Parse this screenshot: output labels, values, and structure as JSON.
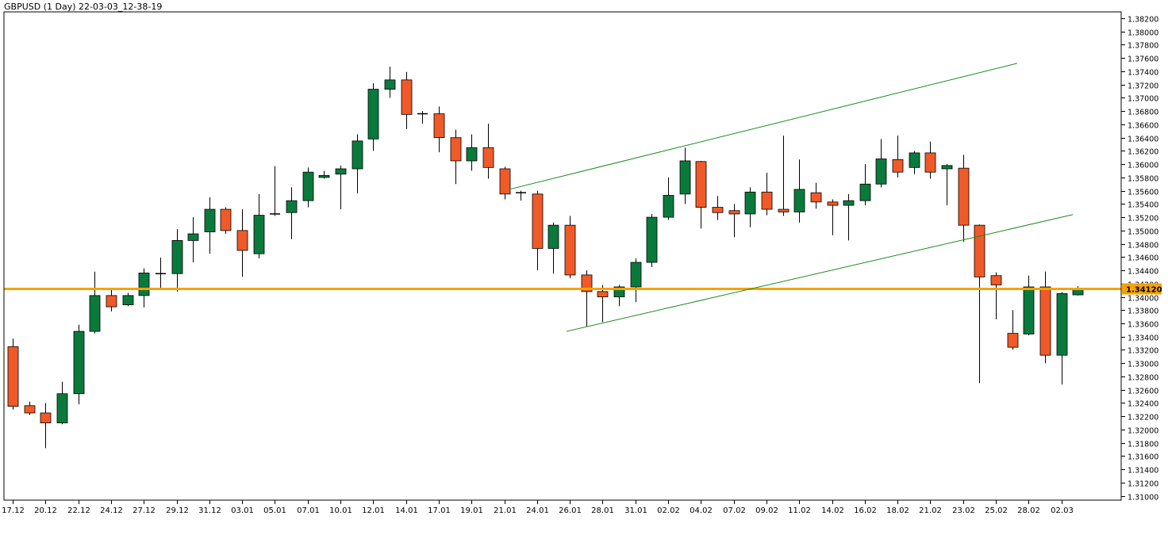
{
  "chart_title": "GBPUSD (1 Day) 22-03-03_12-38-19",
  "colors": {
    "bull": "#0a7a3c",
    "bear": "#f05a28",
    "wick": "#000000",
    "level": "#f5a300",
    "channel": "#1c8a1c",
    "background": "#ffffff",
    "frame": "#000000",
    "price_tag_bg": "#f5a300"
  },
  "chart_data": {
    "type": "candlestick",
    "title": "GBPUSD (1 Day) 22-03-03_12-38-19",
    "ylim": [
      1.31,
      1.382
    ],
    "yticks": [
      "1.38200",
      "1.38000",
      "1.37800",
      "1.37600",
      "1.37400",
      "1.37200",
      "1.37000",
      "1.36800",
      "1.36600",
      "1.36400",
      "1.36200",
      "1.36000",
      "1.35800",
      "1.35600",
      "1.35400",
      "1.35200",
      "1.35000",
      "1.34800",
      "1.34600",
      "1.34400",
      "1.34200",
      "1.34000",
      "1.33800",
      "1.33600",
      "1.33400",
      "1.33200",
      "1.33000",
      "1.32800",
      "1.32600",
      "1.32400",
      "1.32200",
      "1.32000",
      "1.31800",
      "1.31600",
      "1.31400",
      "1.31200",
      "1.31000"
    ],
    "xtick_labels": [
      {
        "label": "17.12",
        "bar": 0
      },
      {
        "label": "20.12",
        "bar": 2
      },
      {
        "label": "22.12",
        "bar": 4
      },
      {
        "label": "24.12",
        "bar": 6
      },
      {
        "label": "27.12",
        "bar": 8
      },
      {
        "label": "29.12",
        "bar": 10
      },
      {
        "label": "31.12",
        "bar": 12
      },
      {
        "label": "03.01",
        "bar": 14
      },
      {
        "label": "05.01",
        "bar": 16
      },
      {
        "label": "07.01",
        "bar": 18
      },
      {
        "label": "10.01",
        "bar": 20
      },
      {
        "label": "12.01",
        "bar": 22
      },
      {
        "label": "14.01",
        "bar": 24
      },
      {
        "label": "17.01",
        "bar": 26
      },
      {
        "label": "19.01",
        "bar": 28
      },
      {
        "label": "21.01",
        "bar": 30
      },
      {
        "label": "24.01",
        "bar": 32
      },
      {
        "label": "26.01",
        "bar": 34
      },
      {
        "label": "28.01",
        "bar": 36
      },
      {
        "label": "31.01",
        "bar": 38
      },
      {
        "label": "02.02",
        "bar": 40
      },
      {
        "label": "04.02",
        "bar": 42
      },
      {
        "label": "07.02",
        "bar": 44
      },
      {
        "label": "09.02",
        "bar": 46
      },
      {
        "label": "11.02",
        "bar": 48
      },
      {
        "label": "14.02",
        "bar": 50
      },
      {
        "label": "16.02",
        "bar": 52
      },
      {
        "label": "18.02",
        "bar": 54
      },
      {
        "label": "21.02",
        "bar": 56
      },
      {
        "label": "23.02",
        "bar": 58
      },
      {
        "label": "25.02",
        "bar": 60
      },
      {
        "label": "28.02",
        "bar": 62
      },
      {
        "label": "02.03",
        "bar": 64
      }
    ],
    "candles": [
      {
        "o": 1.3325,
        "h": 1.3337,
        "l": 1.323,
        "c": 1.3235
      },
      {
        "o": 1.3236,
        "h": 1.3242,
        "l": 1.3222,
        "c": 1.3225
      },
      {
        "o": 1.3225,
        "h": 1.324,
        "l": 1.3172,
        "c": 1.321
      },
      {
        "o": 1.321,
        "h": 1.3272,
        "l": 1.3208,
        "c": 1.3254
      },
      {
        "o": 1.3254,
        "h": 1.3358,
        "l": 1.3238,
        "c": 1.3348
      },
      {
        "o": 1.3348,
        "h": 1.3438,
        "l": 1.3345,
        "c": 1.3402
      },
      {
        "o": 1.3402,
        "h": 1.3412,
        "l": 1.3378,
        "c": 1.3385
      },
      {
        "o": 1.3388,
        "h": 1.3406,
        "l": 1.3386,
        "c": 1.3402
      },
      {
        "o": 1.3402,
        "h": 1.3443,
        "l": 1.3384,
        "c": 1.3436
      },
      {
        "o": 1.3435,
        "h": 1.3459,
        "l": 1.3413,
        "c": 1.3435
      },
      {
        "o": 1.3435,
        "h": 1.3502,
        "l": 1.3408,
        "c": 1.3485
      },
      {
        "o": 1.3485,
        "h": 1.352,
        "l": 1.3452,
        "c": 1.3495
      },
      {
        "o": 1.3498,
        "h": 1.355,
        "l": 1.3465,
        "c": 1.3532
      },
      {
        "o": 1.3532,
        "h": 1.3535,
        "l": 1.3495,
        "c": 1.35
      },
      {
        "o": 1.35,
        "h": 1.3532,
        "l": 1.343,
        "c": 1.347
      },
      {
        "o": 1.3465,
        "h": 1.3555,
        "l": 1.3458,
        "c": 1.3523
      },
      {
        "o": 1.3525,
        "h": 1.3597,
        "l": 1.3522,
        "c": 1.3525
      },
      {
        "o": 1.3527,
        "h": 1.3565,
        "l": 1.3487,
        "c": 1.3545
      },
      {
        "o": 1.3545,
        "h": 1.3595,
        "l": 1.3535,
        "c": 1.3588
      },
      {
        "o": 1.358,
        "h": 1.359,
        "l": 1.3578,
        "c": 1.3583
      },
      {
        "o": 1.3585,
        "h": 1.3598,
        "l": 1.3532,
        "c": 1.3593
      },
      {
        "o": 1.3593,
        "h": 1.3645,
        "l": 1.3556,
        "c": 1.3635
      },
      {
        "o": 1.3638,
        "h": 1.3722,
        "l": 1.362,
        "c": 1.3713
      },
      {
        "o": 1.3713,
        "h": 1.3747,
        "l": 1.37,
        "c": 1.3727
      },
      {
        "o": 1.3727,
        "h": 1.3739,
        "l": 1.3653,
        "c": 1.3675
      },
      {
        "o": 1.3676,
        "h": 1.368,
        "l": 1.3661,
        "c": 1.3676
      },
      {
        "o": 1.3676,
        "h": 1.3687,
        "l": 1.3618,
        "c": 1.364
      },
      {
        "o": 1.364,
        "h": 1.3652,
        "l": 1.357,
        "c": 1.3605
      },
      {
        "o": 1.3605,
        "h": 1.3645,
        "l": 1.359,
        "c": 1.3625
      },
      {
        "o": 1.3625,
        "h": 1.3661,
        "l": 1.3578,
        "c": 1.3595
      },
      {
        "o": 1.3593,
        "h": 1.3596,
        "l": 1.3547,
        "c": 1.3555
      },
      {
        "o": 1.3557,
        "h": 1.356,
        "l": 1.3545,
        "c": 1.3557
      },
      {
        "o": 1.3555,
        "h": 1.356,
        "l": 1.344,
        "c": 1.3473
      },
      {
        "o": 1.3473,
        "h": 1.3512,
        "l": 1.3435,
        "c": 1.3508
      },
      {
        "o": 1.3508,
        "h": 1.3522,
        "l": 1.3428,
        "c": 1.3433
      },
      {
        "o": 1.3433,
        "h": 1.344,
        "l": 1.3355,
        "c": 1.3408
      },
      {
        "o": 1.3408,
        "h": 1.3418,
        "l": 1.3362,
        "c": 1.34
      },
      {
        "o": 1.34,
        "h": 1.3418,
        "l": 1.3386,
        "c": 1.3415
      },
      {
        "o": 1.3415,
        "h": 1.3458,
        "l": 1.3392,
        "c": 1.3452
      },
      {
        "o": 1.3452,
        "h": 1.3525,
        "l": 1.3445,
        "c": 1.352
      },
      {
        "o": 1.352,
        "h": 1.358,
        "l": 1.3516,
        "c": 1.3553
      },
      {
        "o": 1.3555,
        "h": 1.3625,
        "l": 1.354,
        "c": 1.3605
      },
      {
        "o": 1.3604,
        "h": 1.3605,
        "l": 1.3503,
        "c": 1.3535
      },
      {
        "o": 1.3535,
        "h": 1.3552,
        "l": 1.3516,
        "c": 1.3527
      },
      {
        "o": 1.353,
        "h": 1.354,
        "l": 1.349,
        "c": 1.3525
      },
      {
        "o": 1.3525,
        "h": 1.3565,
        "l": 1.3505,
        "c": 1.3558
      },
      {
        "o": 1.3558,
        "h": 1.3587,
        "l": 1.3523,
        "c": 1.3532
      },
      {
        "o": 1.3532,
        "h": 1.3643,
        "l": 1.3522,
        "c": 1.3528
      },
      {
        "o": 1.3528,
        "h": 1.3607,
        "l": 1.3512,
        "c": 1.3562
      },
      {
        "o": 1.3557,
        "h": 1.3572,
        "l": 1.3533,
        "c": 1.3543
      },
      {
        "o": 1.3543,
        "h": 1.3547,
        "l": 1.3493,
        "c": 1.3538
      },
      {
        "o": 1.3538,
        "h": 1.3555,
        "l": 1.3485,
        "c": 1.3545
      },
      {
        "o": 1.3545,
        "h": 1.36,
        "l": 1.3538,
        "c": 1.357
      },
      {
        "o": 1.357,
        "h": 1.3638,
        "l": 1.3565,
        "c": 1.3608
      },
      {
        "o": 1.3607,
        "h": 1.3643,
        "l": 1.358,
        "c": 1.3588
      },
      {
        "o": 1.3595,
        "h": 1.362,
        "l": 1.3585,
        "c": 1.3617
      },
      {
        "o": 1.3617,
        "h": 1.3634,
        "l": 1.3578,
        "c": 1.3588
      },
      {
        "o": 1.3593,
        "h": 1.36,
        "l": 1.3538,
        "c": 1.3598
      },
      {
        "o": 1.3594,
        "h": 1.3614,
        "l": 1.3483,
        "c": 1.3508
      },
      {
        "o": 1.3508,
        "h": 1.3509,
        "l": 1.327,
        "c": 1.343
      },
      {
        "o": 1.3432,
        "h": 1.3437,
        "l": 1.3366,
        "c": 1.3418
      },
      {
        "o": 1.3345,
        "h": 1.338,
        "l": 1.332,
        "c": 1.3324
      },
      {
        "o": 1.3344,
        "h": 1.3432,
        "l": 1.3342,
        "c": 1.3415
      },
      {
        "o": 1.3415,
        "h": 1.3438,
        "l": 1.33,
        "c": 1.3312
      },
      {
        "o": 1.3312,
        "h": 1.3407,
        "l": 1.3268,
        "c": 1.3405
      },
      {
        "o": 1.3403,
        "h": 1.3416,
        "l": 1.3402,
        "c": 1.3413
      }
    ],
    "horizontal_level": {
      "value": 1.3412,
      "label": "1.34120"
    },
    "channel_lines": [
      {
        "bar_start": 30.3,
        "price_start": 1.3562,
        "bar_end": 61.3,
        "price_end": 1.3752
      },
      {
        "bar_start": 33.8,
        "price_start": 1.3348,
        "bar_end": 64.7,
        "price_end": 1.3524
      }
    ]
  }
}
